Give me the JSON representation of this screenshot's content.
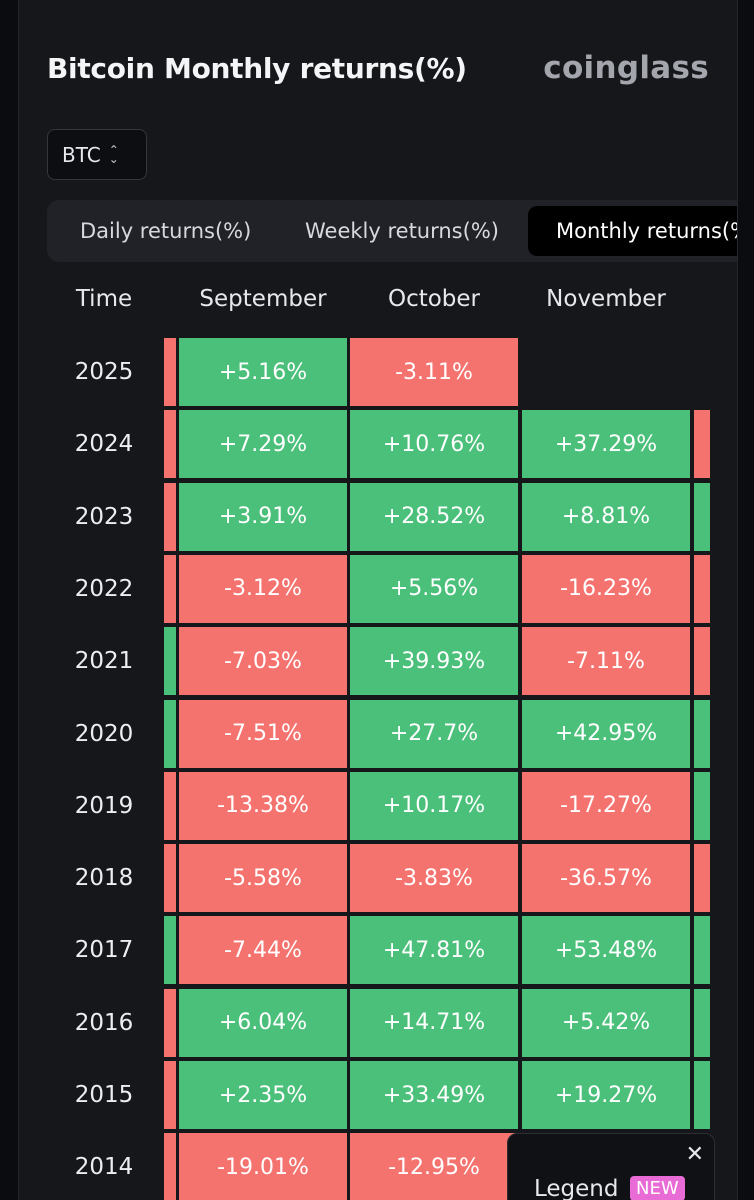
{
  "header": {
    "title": "Bitcoin Monthly returns(%)",
    "brand": "coinglass"
  },
  "selector": {
    "value": "BTC"
  },
  "tabs": [
    {
      "label": "Daily returns(%)"
    },
    {
      "label": "Weekly returns(%)"
    },
    {
      "label": "Monthly returns(%)"
    }
  ],
  "table": {
    "columns": [
      "Time",
      "September",
      "October",
      "November"
    ],
    "rows": [
      {
        "year": "2025",
        "prev": "neg",
        "cells": [
          [
            "+5.16%",
            "pos"
          ],
          [
            "-3.11%",
            "neg"
          ],
          [
            "",
            ""
          ]
        ],
        "next": ""
      },
      {
        "year": "2024",
        "prev": "neg",
        "cells": [
          [
            "+7.29%",
            "pos"
          ],
          [
            "+10.76%",
            "pos"
          ],
          [
            "+37.29%",
            "pos"
          ]
        ],
        "next": "neg"
      },
      {
        "year": "2023",
        "prev": "neg",
        "cells": [
          [
            "+3.91%",
            "pos"
          ],
          [
            "+28.52%",
            "pos"
          ],
          [
            "+8.81%",
            "pos"
          ]
        ],
        "next": "pos"
      },
      {
        "year": "2022",
        "prev": "neg",
        "cells": [
          [
            "-3.12%",
            "neg"
          ],
          [
            "+5.56%",
            "pos"
          ],
          [
            "-16.23%",
            "neg"
          ]
        ],
        "next": "neg"
      },
      {
        "year": "2021",
        "prev": "pos",
        "cells": [
          [
            "-7.03%",
            "neg"
          ],
          [
            "+39.93%",
            "pos"
          ],
          [
            "-7.11%",
            "neg"
          ]
        ],
        "next": "neg"
      },
      {
        "year": "2020",
        "prev": "pos",
        "cells": [
          [
            "-7.51%",
            "neg"
          ],
          [
            "+27.7%",
            "pos"
          ],
          [
            "+42.95%",
            "pos"
          ]
        ],
        "next": "pos"
      },
      {
        "year": "2019",
        "prev": "neg",
        "cells": [
          [
            "-13.38%",
            "neg"
          ],
          [
            "+10.17%",
            "pos"
          ],
          [
            "-17.27%",
            "neg"
          ]
        ],
        "next": "pos"
      },
      {
        "year": "2018",
        "prev": "neg",
        "cells": [
          [
            "-5.58%",
            "neg"
          ],
          [
            "-3.83%",
            "neg"
          ],
          [
            "-36.57%",
            "neg"
          ]
        ],
        "next": "neg"
      },
      {
        "year": "2017",
        "prev": "pos",
        "cells": [
          [
            "-7.44%",
            "neg"
          ],
          [
            "+47.81%",
            "pos"
          ],
          [
            "+53.48%",
            "pos"
          ]
        ],
        "next": "pos"
      },
      {
        "year": "2016",
        "prev": "neg",
        "cells": [
          [
            "+6.04%",
            "pos"
          ],
          [
            "+14.71%",
            "pos"
          ],
          [
            "+5.42%",
            "pos"
          ]
        ],
        "next": "pos"
      },
      {
        "year": "2015",
        "prev": "neg",
        "cells": [
          [
            "+2.35%",
            "pos"
          ],
          [
            "+33.49%",
            "pos"
          ],
          [
            "+19.27%",
            "pos"
          ]
        ],
        "next": "pos"
      },
      {
        "year": "2014",
        "prev": "neg",
        "cells": [
          [
            "-19.01%",
            "neg"
          ],
          [
            "-12.95%",
            "neg"
          ],
          [
            "",
            ""
          ]
        ],
        "next": ""
      }
    ]
  },
  "legend": {
    "label": "Legend",
    "badge": "NEW"
  },
  "icons": {
    "close": "close-icon",
    "select": "chevron-updown-icon"
  }
}
